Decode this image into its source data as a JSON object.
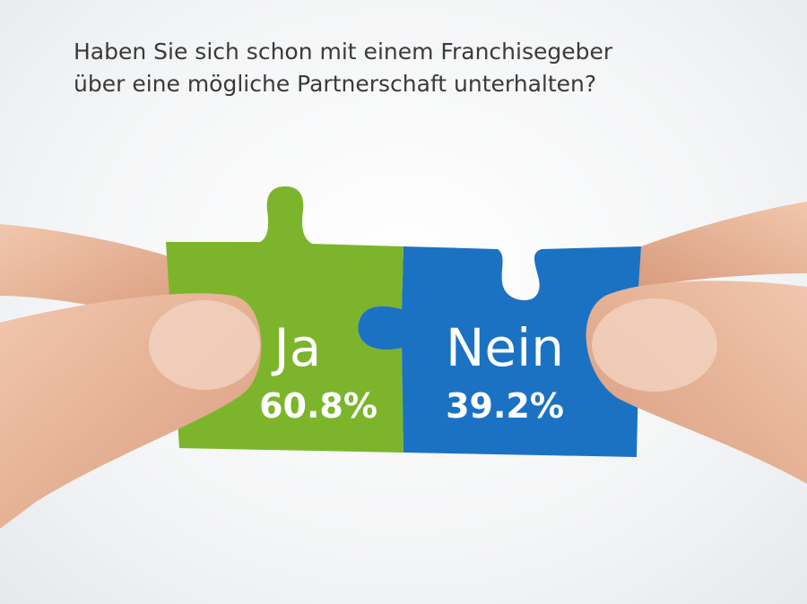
{
  "title_line1": "Haben Sie sich schon mit einem Franchisegeber",
  "title_line2": "über eine mögliche Partnerschaft unterhalten?",
  "colors": {
    "ja": "#7cb52b",
    "nein": "#1b72c2",
    "text": "#3a3a3a",
    "skin": "#e9b99c"
  },
  "chart_data": {
    "type": "bar",
    "title": "Haben Sie sich schon mit einem Franchisegeber über eine mögliche Partnerschaft unterhalten?",
    "categories": [
      "Ja",
      "Nein"
    ],
    "values": [
      60.8,
      39.2
    ],
    "labels": [
      "60.8%",
      "39.2%"
    ],
    "unit": "%"
  }
}
